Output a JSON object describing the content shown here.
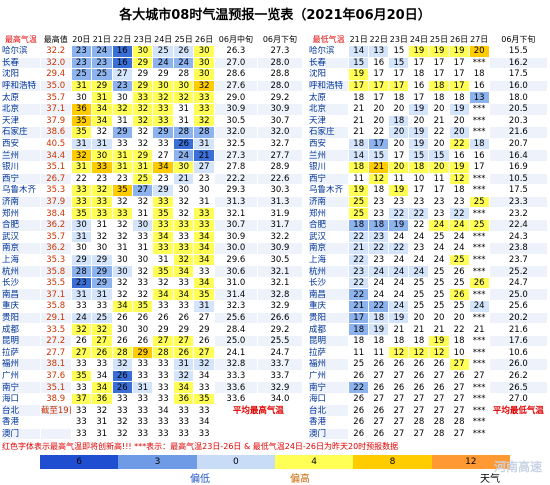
{
  "title": "各大城市08时气温预报一览表（2021年06月20日）",
  "left_table": {
    "header": [
      "最高气温",
      "最高值",
      "20日",
      "21日",
      "22日",
      "23日",
      "24日",
      "25日",
      "26日",
      "06月中旬",
      "06月下旬"
    ],
    "rows": [
      {
        "city": "哈尔滨",
        "max": "32.2",
        "days": [
          "23",
          "24",
          "16",
          "30",
          "25",
          "26",
          "30"
        ],
        "mid": "26.3",
        "late": "27.3"
      },
      {
        "city": "长春",
        "max": "32.0",
        "days": [
          "23",
          "23",
          "16",
          "29",
          "24",
          "24",
          "30"
        ],
        "mid": "27.0",
        "late": "28.0"
      },
      {
        "city": "沈阳",
        "max": "29.4",
        "days": [
          "25",
          "25",
          "27",
          "29",
          "29",
          "28",
          "30"
        ],
        "mid": "28.6",
        "late": "28.8"
      },
      {
        "city": "呼和浩特",
        "max": "35.0",
        "days": [
          "31",
          "29",
          "23",
          "29",
          "30",
          "30",
          "32"
        ],
        "mid": "27.6",
        "late": "28.0"
      },
      {
        "city": "太原",
        "max": "35.7",
        "days": [
          "30",
          "31",
          "30",
          "33",
          "32",
          "32",
          "33"
        ],
        "mid": "29.0",
        "late": "29.2"
      },
      {
        "city": "北京",
        "max": "37.1",
        "days": [
          "36",
          "34",
          "32",
          "32",
          "33",
          "31",
          "33"
        ],
        "mid": "30.9",
        "late": "30.9"
      },
      {
        "city": "天津",
        "max": "37.9",
        "days": [
          "35",
          "34",
          "31",
          "32",
          "33",
          "31",
          "32"
        ],
        "mid": "30.5",
        "late": "30.7"
      },
      {
        "city": "石家庄",
        "max": "38.6",
        "days": [
          "35",
          "32",
          "29",
          "32",
          "29",
          "28",
          "28"
        ],
        "mid": "32.0",
        "late": "32.0"
      },
      {
        "city": "西安",
        "max": "40.5",
        "days": [
          "31",
          "31",
          "33",
          "32",
          "33",
          "26",
          "31"
        ],
        "mid": "32.5",
        "late": "32.7"
      },
      {
        "city": "兰州",
        "max": "34.4",
        "days": [
          "32",
          "30",
          "31",
          "29",
          "27",
          "24",
          "21"
        ],
        "mid": "27.3",
        "late": "27.7"
      },
      {
        "city": "银川",
        "max": "35.1",
        "days": [
          "31",
          "33",
          "31",
          "31",
          "34",
          "30",
          "27"
        ],
        "mid": "27.8",
        "late": "28.9"
      },
      {
        "city": "西宁",
        "max": "26.7",
        "days": [
          "22",
          "23",
          "23",
          "25",
          "23",
          "21",
          "23"
        ],
        "mid": "22.2",
        "late": "22.6"
      },
      {
        "city": "乌鲁木齐",
        "max": "35.3",
        "days": [
          "33",
          "32",
          "35",
          "27",
          "29",
          "30",
          "30"
        ],
        "mid": "29.3",
        "late": "30.3"
      },
      {
        "city": "济南",
        "max": "37.9",
        "days": [
          "33",
          "33",
          "32",
          "32",
          "33",
          "32",
          "31"
        ],
        "mid": "31.3",
        "late": "31.3"
      },
      {
        "city": "郑州",
        "max": "38.4",
        "days": [
          "35",
          "33",
          "33",
          "31",
          "35",
          "32",
          "33"
        ],
        "mid": "32.1",
        "late": "31.9"
      },
      {
        "city": "合肥",
        "max": "36.2",
        "days": [
          "30",
          "31",
          "32",
          "30",
          "33",
          "33",
          "33"
        ],
        "mid": "30.7",
        "late": "31.7"
      },
      {
        "city": "武汉",
        "max": "35.7",
        "days": [
          "31",
          "32",
          "32",
          "33",
          "34",
          "33",
          "34"
        ],
        "mid": "30.9",
        "late": "32.2"
      },
      {
        "city": "南京",
        "max": "36.2",
        "days": [
          "30",
          "30",
          "31",
          "31",
          "33",
          "33",
          "34"
        ],
        "mid": "30.0",
        "late": "30.9"
      },
      {
        "city": "上海",
        "max": "35.3",
        "days": [
          "29",
          "29",
          "30",
          "30",
          "31",
          "32",
          "34"
        ],
        "mid": "29.6",
        "late": "30.5"
      },
      {
        "city": "杭州",
        "max": "35.8",
        "days": [
          "28",
          "29",
          "30",
          "32",
          "35",
          "34",
          "33"
        ],
        "mid": "30.6",
        "late": "32.1"
      },
      {
        "city": "长沙",
        "max": "35.5",
        "days": [
          "23",
          "29",
          "32",
          "33",
          "32",
          "33",
          "34"
        ],
        "mid": "31.0",
        "late": "32.1"
      },
      {
        "city": "南昌",
        "max": "37.1",
        "days": [
          "31",
          "31",
          "32",
          "32",
          "34",
          "34",
          "35"
        ],
        "mid": "31.4",
        "late": "32.8"
      },
      {
        "city": "重庆",
        "max": "35.8",
        "days": [
          "33",
          "33",
          "34",
          "35",
          "33",
          "33",
          "31"
        ],
        "mid": "32.3",
        "late": "32.9"
      },
      {
        "city": "贵阳",
        "max": "29.1",
        "days": [
          "24",
          "25",
          "26",
          "26",
          "26",
          "26",
          "27"
        ],
        "mid": "25.6",
        "late": "26.6"
      },
      {
        "city": "成都",
        "max": "33.5",
        "days": [
          "32",
          "32",
          "30",
          "30",
          "29",
          "29",
          "29"
        ],
        "mid": "28.4",
        "late": "29.2"
      },
      {
        "city": "昆明",
        "max": "27.2",
        "days": [
          "26",
          "27",
          "26",
          "26",
          "27",
          "27",
          "26"
        ],
        "mid": "25.0",
        "late": "25.5"
      },
      {
        "city": "拉萨",
        "max": "27.7",
        "days": [
          "27",
          "26",
          "28",
          "29",
          "28",
          "26",
          "27"
        ],
        "mid": "24.1",
        "late": "24.7"
      },
      {
        "city": "福州",
        "max": "38.1",
        "days": [
          "33",
          "33",
          "32",
          "33",
          "33",
          "31",
          "32"
        ],
        "mid": "32.8",
        "late": "33.7"
      },
      {
        "city": "广州",
        "max": "37.6",
        "days": [
          "35",
          "34",
          "26",
          "33",
          "33",
          "32",
          "34"
        ],
        "mid": "33.3",
        "late": "33.7"
      },
      {
        "city": "南宁",
        "max": "35.1",
        "days": [
          "33",
          "34",
          "26",
          "31",
          "33",
          "34",
          "33"
        ],
        "mid": "33.6",
        "late": "32.9"
      },
      {
        "city": "海口",
        "max": "38.9",
        "days": [
          "37",
          "36",
          "33",
          "33",
          "33",
          "36",
          "35"
        ],
        "mid": "33.6",
        "late": "34.0"
      },
      {
        "city": "台北",
        "max": "截至19日",
        "days": [
          "33",
          "32",
          "33",
          "33",
          "34",
          "33",
          "33"
        ],
        "note": "平均最高气温"
      },
      {
        "city": "香港",
        "days": [
          "33",
          "31",
          "32",
          "33",
          "33",
          "33",
          "34"
        ]
      },
      {
        "city": "澳门",
        "days": [
          "33",
          "31",
          "32",
          "33",
          "33",
          "33",
          "33"
        ]
      }
    ]
  },
  "right_table": {
    "header": [
      "最低气温",
      "21日",
      "22日",
      "23日",
      "24日",
      "25日",
      "26日",
      "27日",
      "06月下旬"
    ],
    "rows": [
      {
        "city": "哈尔滨",
        "days": [
          "14",
          "13",
          "15",
          "19",
          "19",
          "19",
          "20"
        ],
        "late": "15.5"
      },
      {
        "city": "长春",
        "days": [
          "15",
          "16",
          "15",
          "17",
          "17",
          "17",
          "***"
        ],
        "late": "16.2"
      },
      {
        "city": "沈阳",
        "days": [
          "19",
          "17",
          "17",
          "18",
          "17",
          "17",
          "18"
        ],
        "late": "17.5"
      },
      {
        "city": "呼和浩特",
        "days": [
          "17",
          "17",
          "17",
          "16",
          "18",
          "17",
          "16"
        ],
        "late": "16.0"
      },
      {
        "city": "太原",
        "days": [
          "18",
          "17",
          "18",
          "17",
          "18",
          "18",
          "13"
        ],
        "late": "18.0"
      },
      {
        "city": "北京",
        "days": [
          "21",
          "20",
          "20",
          "19",
          "20",
          "19",
          "***"
        ],
        "late": "20.5"
      },
      {
        "city": "天津",
        "days": [
          "21",
          "20",
          "18",
          "20",
          "21",
          "20",
          "***"
        ],
        "late": "20.3"
      },
      {
        "city": "石家庄",
        "days": [
          "21",
          "22",
          "20",
          "19",
          "22",
          "20",
          "***"
        ],
        "late": "21.6"
      },
      {
        "city": "西安",
        "days": [
          "18",
          "17",
          "20",
          "19",
          "20",
          "22",
          "18"
        ],
        "late": "20.7"
      },
      {
        "city": "兰州",
        "days": [
          "14",
          "15",
          "17",
          "15",
          "15",
          "16",
          "16"
        ],
        "late": "16.4"
      },
      {
        "city": "银川",
        "days": [
          "18",
          "21",
          "20",
          "18",
          "20",
          "19",
          "17"
        ],
        "late": "16.9"
      },
      {
        "city": "西宁",
        "days": [
          "11",
          "12",
          "11",
          "10",
          "11",
          "12",
          "***"
        ],
        "late": "10.5"
      },
      {
        "city": "乌鲁木齐",
        "days": [
          "19",
          "18",
          "19",
          "17",
          "17",
          "18",
          "***"
        ],
        "late": "17.5"
      },
      {
        "city": "济南",
        "days": [
          "25",
          "23",
          "23",
          "23",
          "23",
          "23",
          "25"
        ],
        "late": "23.3"
      },
      {
        "city": "郑州",
        "days": [
          "25",
          "23",
          "22",
          "22",
          "23",
          "22",
          "***"
        ],
        "late": "23.2"
      },
      {
        "city": "合肥",
        "days": [
          "18",
          "18",
          "19",
          "22",
          "24",
          "24",
          "25"
        ],
        "late": "22.4"
      },
      {
        "city": "武汉",
        "days": [
          "22",
          "23",
          "24",
          "24",
          "25",
          "24",
          "***"
        ],
        "late": "24.3"
      },
      {
        "city": "南京",
        "days": [
          "21",
          "22",
          "22",
          "23",
          "24",
          "24",
          "***"
        ],
        "late": "23.8"
      },
      {
        "city": "上海",
        "days": [
          "22",
          "23",
          "24",
          "24",
          "24",
          "25",
          "***"
        ],
        "late": "23.7"
      },
      {
        "city": "杭州",
        "days": [
          "23",
          "24",
          "24",
          "24",
          "25",
          "26",
          "***"
        ],
        "late": "25.2"
      },
      {
        "city": "长沙",
        "days": [
          "22",
          "24",
          "24",
          "25",
          "25",
          "25",
          "26"
        ],
        "late": "24.7"
      },
      {
        "city": "南昌",
        "days": [
          "22",
          "24",
          "24",
          "25",
          "25",
          "26",
          "***"
        ],
        "late": "25.0"
      },
      {
        "city": "重庆",
        "days": [
          "21",
          "22",
          "24",
          "25",
          "25",
          "25",
          "24"
        ],
        "late": "25.6"
      },
      {
        "city": "贵阳",
        "days": [
          "17",
          "18",
          "19",
          "20",
          "20",
          "20",
          "***"
        ],
        "late": "20.2"
      },
      {
        "city": "成都",
        "days": [
          "18",
          "19",
          "21",
          "21",
          "21",
          "22",
          "21"
        ],
        "late": "21.6"
      },
      {
        "city": "昆明",
        "days": [
          "18",
          "18",
          "18",
          "18",
          "19",
          "18",
          "***"
        ],
        "late": "17.6"
      },
      {
        "city": "拉萨",
        "days": [
          "11",
          "11",
          "12",
          "12",
          "12",
          "10",
          "***"
        ],
        "late": "10.6"
      },
      {
        "city": "福州",
        "days": [
          "25",
          "26",
          "26",
          "26",
          "26",
          "27",
          "***"
        ],
        "late": "26.0"
      },
      {
        "city": "广州",
        "days": [
          "26",
          "27",
          "27",
          "26",
          "27",
          "26",
          "27"
        ],
        "late": "26.2"
      },
      {
        "city": "南宁",
        "days": [
          "22",
          "26",
          "26",
          "26",
          "26",
          "27",
          "***"
        ],
        "late": "26.5"
      },
      {
        "city": "海口",
        "days": [
          "26",
          "27",
          "27",
          "27",
          "27",
          "27",
          "***"
        ],
        "late": "27.0"
      },
      {
        "city": "台北",
        "days": [
          "26",
          "26",
          "27",
          "27",
          "27",
          "27",
          "***"
        ],
        "note": "平均最低气温"
      },
      {
        "city": "香港",
        "days": [
          "26",
          "27",
          "27",
          "28",
          "28",
          "28",
          "***"
        ]
      },
      {
        "city": "澳门",
        "days": [
          "26",
          "26",
          "27",
          "27",
          "28",
          "27",
          "***"
        ]
      }
    ]
  },
  "footnote": "红色字体表示最高气温即将创新高!!!   ***表示：最高气温23日-26日 & 最低气温24日-26日为昨天20时预报数据",
  "legend": {
    "labels": [
      "6",
      "3",
      "0",
      "4",
      "8",
      "12"
    ],
    "low": "偏低",
    "high": "偏高",
    "weather": "天气"
  },
  "watermark": "河南高速"
}
